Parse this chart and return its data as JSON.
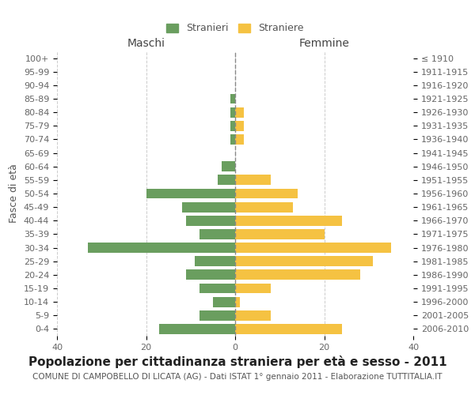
{
  "age_groups": [
    "0-4",
    "5-9",
    "10-14",
    "15-19",
    "20-24",
    "25-29",
    "30-34",
    "35-39",
    "40-44",
    "45-49",
    "50-54",
    "55-59",
    "60-64",
    "65-69",
    "70-74",
    "75-79",
    "80-84",
    "85-89",
    "90-94",
    "95-99",
    "100+"
  ],
  "birth_years": [
    "2006-2010",
    "2001-2005",
    "1996-2000",
    "1991-1995",
    "1986-1990",
    "1981-1985",
    "1976-1980",
    "1971-1975",
    "1966-1970",
    "1961-1965",
    "1956-1960",
    "1951-1955",
    "1946-1950",
    "1941-1945",
    "1936-1940",
    "1931-1935",
    "1926-1930",
    "1921-1925",
    "1916-1920",
    "1911-1915",
    "≤ 1910"
  ],
  "maschi": [
    17,
    8,
    5,
    8,
    11,
    9,
    33,
    8,
    11,
    12,
    20,
    4,
    3,
    0,
    1,
    1,
    1,
    1,
    0,
    0,
    0
  ],
  "femmine": [
    24,
    8,
    1,
    8,
    28,
    31,
    35,
    20,
    24,
    13,
    14,
    8,
    0,
    0,
    2,
    2,
    2,
    0,
    0,
    0,
    0
  ],
  "maschi_color": "#6a9e5f",
  "femmine_color": "#f5c242",
  "background_color": "#ffffff",
  "grid_color": "#cccccc",
  "title": "Popolazione per cittadinanza straniera per età e sesso - 2011",
  "subtitle": "COMUNE DI CAMPOBELLO DI LICATA (AG) - Dati ISTAT 1° gennaio 2011 - Elaborazione TUTTITALIA.IT",
  "ylabel_left": "Fasce di età",
  "label_maschi": "Maschi",
  "label_femmine": "Femmine",
  "legend_stranieri": "Stranieri",
  "legend_straniere": "Straniere",
  "xlim": 40,
  "title_fontsize": 11,
  "subtitle_fontsize": 7.5,
  "axis_label_fontsize": 9,
  "tick_fontsize": 8
}
